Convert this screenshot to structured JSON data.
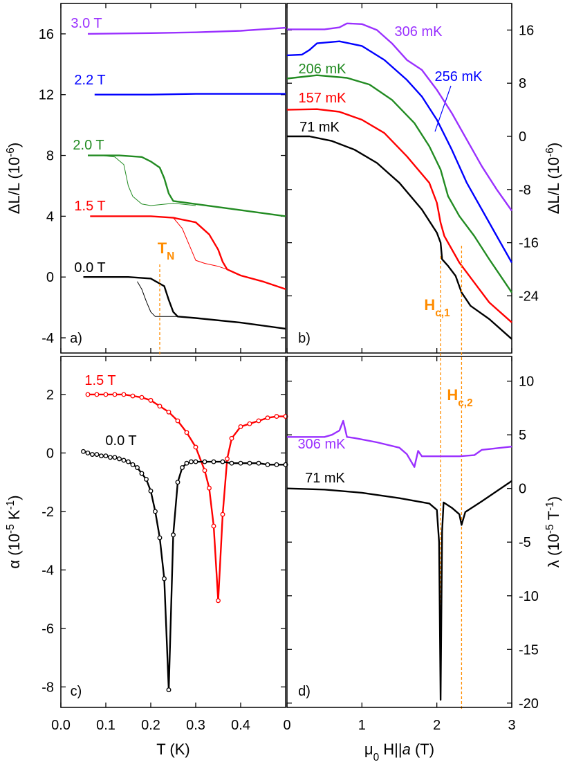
{
  "chart_data": [
    {
      "type": "line",
      "panel": "a)",
      "ylabel": [
        {
          "text": "ΔL/L (10"
        },
        {
          "text": "-6",
          "script": "sup"
        },
        {
          "text": ")"
        }
      ],
      "xlim": [
        0,
        0.5
      ],
      "ylim": [
        -5,
        18
      ],
      "yticks": [
        -4,
        0,
        4,
        8,
        12,
        16
      ],
      "series": [
        {
          "name": "3.0 T",
          "color": "#9a30ff",
          "x": [
            0.06,
            0.2,
            0.3,
            0.4,
            0.5
          ],
          "values": [
            16,
            16.05,
            16.1,
            16.2,
            16.4
          ]
        },
        {
          "name": "2.2 T",
          "color": "#0000ff",
          "x": [
            0.075,
            0.2,
            0.3,
            0.4,
            0.5
          ],
          "values": [
            12,
            12,
            12.05,
            12.05,
            12.05
          ]
        },
        {
          "name": "2.0 T",
          "color": "#228b22",
          "x": [
            0.06,
            0.13,
            0.18,
            0.2,
            0.22,
            0.23,
            0.24,
            0.25,
            0.3,
            0.4,
            0.5
          ],
          "values": [
            8,
            8,
            7.9,
            7.6,
            7.2,
            6.5,
            5.5,
            5.0,
            4.8,
            4.4,
            4.0
          ]
        },
        {
          "color": "#228b22",
          "line_width": 1,
          "x": [
            0.09,
            0.12,
            0.14,
            0.15,
            0.16,
            0.18,
            0.2,
            0.25,
            0.3
          ],
          "values": [
            8,
            7.9,
            7.4,
            6.0,
            5.3,
            4.8,
            4.7,
            4.85,
            4.7
          ]
        },
        {
          "name": "1.5 T",
          "color": "#ff0000",
          "x": [
            0.065,
            0.2,
            0.25,
            0.3,
            0.33,
            0.35,
            0.36,
            0.37,
            0.4,
            0.45,
            0.5
          ],
          "values": [
            4,
            4,
            3.9,
            3.6,
            2.8,
            1.8,
            1.0,
            0.5,
            0.1,
            -0.3,
            -0.8
          ]
        },
        {
          "color": "#ff0000",
          "line_width": 1,
          "x": [
            0.25,
            0.27,
            0.29,
            0.3,
            0.32,
            0.35,
            0.37
          ],
          "values": [
            3.9,
            3.2,
            1.8,
            1.1,
            0.9,
            0.7,
            0.5
          ]
        },
        {
          "name": "0.0 T",
          "color": "#000000",
          "x": [
            0.05,
            0.15,
            0.2,
            0.23,
            0.24,
            0.25,
            0.26,
            0.3,
            0.4,
            0.5
          ],
          "values": [
            0,
            0,
            -0.1,
            -0.6,
            -1.5,
            -2.3,
            -2.6,
            -2.7,
            -3.0,
            -3.4
          ]
        },
        {
          "color": "#000000",
          "line_width": 1,
          "x": [
            0.17,
            0.18,
            0.19,
            0.2,
            0.21,
            0.23,
            0.26
          ],
          "values": [
            -0.3,
            -0.8,
            -1.6,
            -2.3,
            -2.6,
            -2.6,
            -2.6
          ]
        }
      ],
      "markers": [
        {
          "value": 0.22,
          "color": "#ff8c00",
          "label": [
            {
              "text": "T"
            },
            {
              "text": "N",
              "script": "sub"
            }
          ]
        }
      ]
    },
    {
      "type": "line",
      "panel": "b)",
      "ylabel": [
        {
          "text": "ΔL/L (10"
        },
        {
          "text": "-6",
          "script": "sup"
        },
        {
          "text": ")"
        }
      ],
      "xlim": [
        0,
        3
      ],
      "ylim": [
        -32.6,
        20
      ],
      "yticks": [
        -24,
        -16,
        -8,
        0,
        8,
        16
      ],
      "series": [
        {
          "name": "71 mK",
          "color": "#000000",
          "x": [
            0,
            0.3,
            0.6,
            0.9,
            1.2,
            1.5,
            1.8,
            2.0,
            2.05,
            2.07,
            2.15,
            2.25,
            2.33,
            2.45,
            2.7,
            3.0
          ],
          "values": [
            0,
            0,
            -0.7,
            -2,
            -4,
            -7,
            -11,
            -14.5,
            -16,
            -18.5,
            -19.5,
            -21,
            -23.5,
            -25.5,
            -27.5,
            -30.5
          ]
        },
        {
          "name": "157 mK",
          "color": "#ff0000",
          "x": [
            0,
            0.4,
            0.7,
            1.0,
            1.3,
            1.6,
            1.9,
            2.0,
            2.05,
            2.1,
            2.3,
            2.5,
            2.7,
            3.0
          ],
          "values": [
            4,
            4.1,
            3.7,
            2.5,
            0.5,
            -3,
            -7,
            -10,
            -13,
            -15,
            -19,
            -22,
            -25,
            -28
          ]
        },
        {
          "name": "206 mK",
          "color": "#228b22",
          "x": [
            0,
            0.4,
            0.8,
            1.1,
            1.4,
            1.7,
            1.9,
            2.05,
            2.15,
            2.3,
            2.5,
            2.7,
            3.0
          ],
          "values": [
            8.7,
            9.2,
            8.8,
            7.8,
            5.5,
            2,
            -1.5,
            -5,
            -9,
            -12,
            -15,
            -18.5,
            -23.5
          ]
        },
        {
          "name": "256 mK",
          "color": "#0000ff",
          "x": [
            0,
            0.2,
            0.3,
            0.4,
            0.7,
            1.0,
            1.3,
            1.6,
            1.8,
            2.0,
            2.2,
            2.4,
            2.6,
            2.8,
            3.0
          ],
          "values": [
            12.2,
            12.3,
            13,
            14,
            14.3,
            13.6,
            11.5,
            8.5,
            6,
            2.5,
            -2,
            -7,
            -11,
            -15,
            -19
          ]
        },
        {
          "name": "306 mK",
          "color": "#9a30ff",
          "x": [
            0,
            0.5,
            0.7,
            0.8,
            1.0,
            1.2,
            1.4,
            1.6,
            1.8,
            2.0,
            2.2,
            2.4,
            2.6,
            2.8,
            3.0
          ],
          "values": [
            16.1,
            16.1,
            16.4,
            17,
            16.9,
            16,
            14,
            11.5,
            10,
            7,
            3.5,
            -0.5,
            -4.5,
            -8,
            -11.2
          ]
        }
      ],
      "markers": [
        {
          "value": 2.05,
          "color": "#ff8c00",
          "label": [
            {
              "text": "H"
            },
            {
              "text": "c,1",
              "script": "sub"
            }
          ]
        },
        {
          "value": 2.33,
          "color": "#ff8c00",
          "label": [
            {
              "text": "H"
            },
            {
              "text": "c,2",
              "script": "sub"
            }
          ]
        }
      ]
    },
    {
      "type": "line",
      "panel": "c)",
      "point_markers": "circle",
      "ylabel": [
        {
          "text": "α (10"
        },
        {
          "text": "-5",
          "script": "sup"
        },
        {
          "text": " K"
        },
        {
          "text": "-1",
          "script": "sup"
        },
        {
          "text": ")"
        }
      ],
      "xlabel": [
        {
          "text": "T (K)"
        }
      ],
      "xlim": [
        0,
        0.5
      ],
      "ylim": [
        -8.7,
        3.3
      ],
      "xticks": [
        {
          "value": 0,
          "label": "0.0"
        },
        0.1,
        0.2,
        0.3,
        0.4
      ],
      "yticks": [
        -8,
        -6,
        -4,
        -2,
        0,
        2
      ],
      "series": [
        {
          "name": "1.5 T",
          "color": "#ff0000",
          "x": [
            0.06,
            0.08,
            0.1,
            0.12,
            0.14,
            0.16,
            0.18,
            0.2,
            0.22,
            0.24,
            0.26,
            0.28,
            0.3,
            0.32,
            0.33,
            0.34,
            0.35,
            0.36,
            0.37,
            0.38,
            0.4,
            0.42,
            0.44,
            0.46,
            0.48,
            0.5
          ],
          "values": [
            2,
            2,
            2,
            2,
            2,
            1.95,
            1.9,
            1.8,
            1.6,
            1.4,
            1.1,
            0.7,
            0.2,
            -0.6,
            -1.2,
            -2.5,
            -5.05,
            -2.1,
            -0.2,
            0.5,
            0.9,
            1.0,
            1.1,
            1.2,
            1.25,
            1.25
          ]
        },
        {
          "name": "0.0 T",
          "color": "#000000",
          "x": [
            0.05,
            0.06,
            0.07,
            0.08,
            0.09,
            0.1,
            0.11,
            0.12,
            0.13,
            0.14,
            0.15,
            0.16,
            0.17,
            0.18,
            0.19,
            0.2,
            0.21,
            0.22,
            0.23,
            0.24,
            0.25,
            0.26,
            0.27,
            0.28,
            0.29,
            0.3,
            0.32,
            0.34,
            0.36,
            0.38,
            0.4,
            0.42,
            0.44,
            0.46,
            0.48,
            0.5
          ],
          "values": [
            0.05,
            0,
            -0.05,
            -0.05,
            -0.1,
            -0.1,
            -0.15,
            -0.15,
            -0.2,
            -0.25,
            -0.3,
            -0.4,
            -0.5,
            -0.7,
            -0.9,
            -1.3,
            -2.0,
            -2.9,
            -4.3,
            -8.1,
            -2.8,
            -1.0,
            -0.5,
            -0.35,
            -0.3,
            -0.3,
            -0.3,
            -0.3,
            -0.3,
            -0.35,
            -0.35,
            -0.35,
            -0.35,
            -0.4,
            -0.4,
            -0.4
          ]
        }
      ]
    },
    {
      "type": "line",
      "panel": "d)",
      "ylabel": [
        {
          "text": "λ (10"
        },
        {
          "text": "-5",
          "script": "sup"
        },
        {
          "text": " T"
        },
        {
          "text": "-1",
          "script": "sup"
        },
        {
          "text": ")"
        }
      ],
      "xlabel": [
        {
          "text": "μ"
        },
        {
          "text": "0",
          "script": "sub"
        },
        {
          "text": " H||"
        },
        {
          "text": "a",
          "style": "italic"
        },
        {
          "text": " (T)"
        }
      ],
      "xlim": [
        0,
        3
      ],
      "ylim": [
        -20.4,
        12.3
      ],
      "xticks": [
        0,
        1,
        2,
        3
      ],
      "yticks": [
        -20,
        -15,
        -10,
        -5,
        0,
        5,
        10
      ],
      "series": [
        {
          "name": "306 mK",
          "color": "#9a30ff",
          "x": [
            0,
            0.5,
            0.6,
            0.7,
            0.75,
            0.8,
            0.9,
            1.2,
            1.5,
            1.6,
            1.7,
            1.75,
            1.8,
            2.0,
            2.3,
            2.5,
            2.6,
            3.0
          ],
          "values": [
            4.8,
            4.8,
            5.0,
            5.4,
            6.3,
            4.8,
            4.7,
            4.3,
            3.8,
            3.2,
            2.0,
            3.5,
            3.0,
            3.0,
            3.0,
            3.1,
            3.6,
            3.9
          ]
        },
        {
          "name": "71 mK",
          "color": "#000000",
          "x": [
            0,
            0.5,
            1.0,
            1.5,
            1.9,
            2.0,
            2.03,
            2.05,
            2.07,
            2.09,
            2.2,
            2.3,
            2.33,
            2.38,
            2.6,
            3.0
          ],
          "values": [
            0,
            -0.1,
            -0.4,
            -0.9,
            -1.4,
            -2.0,
            -5,
            -19.7,
            -4,
            -1.3,
            -1.8,
            -2.4,
            -3.4,
            -2.2,
            -1.2,
            0.7
          ]
        }
      ]
    }
  ]
}
